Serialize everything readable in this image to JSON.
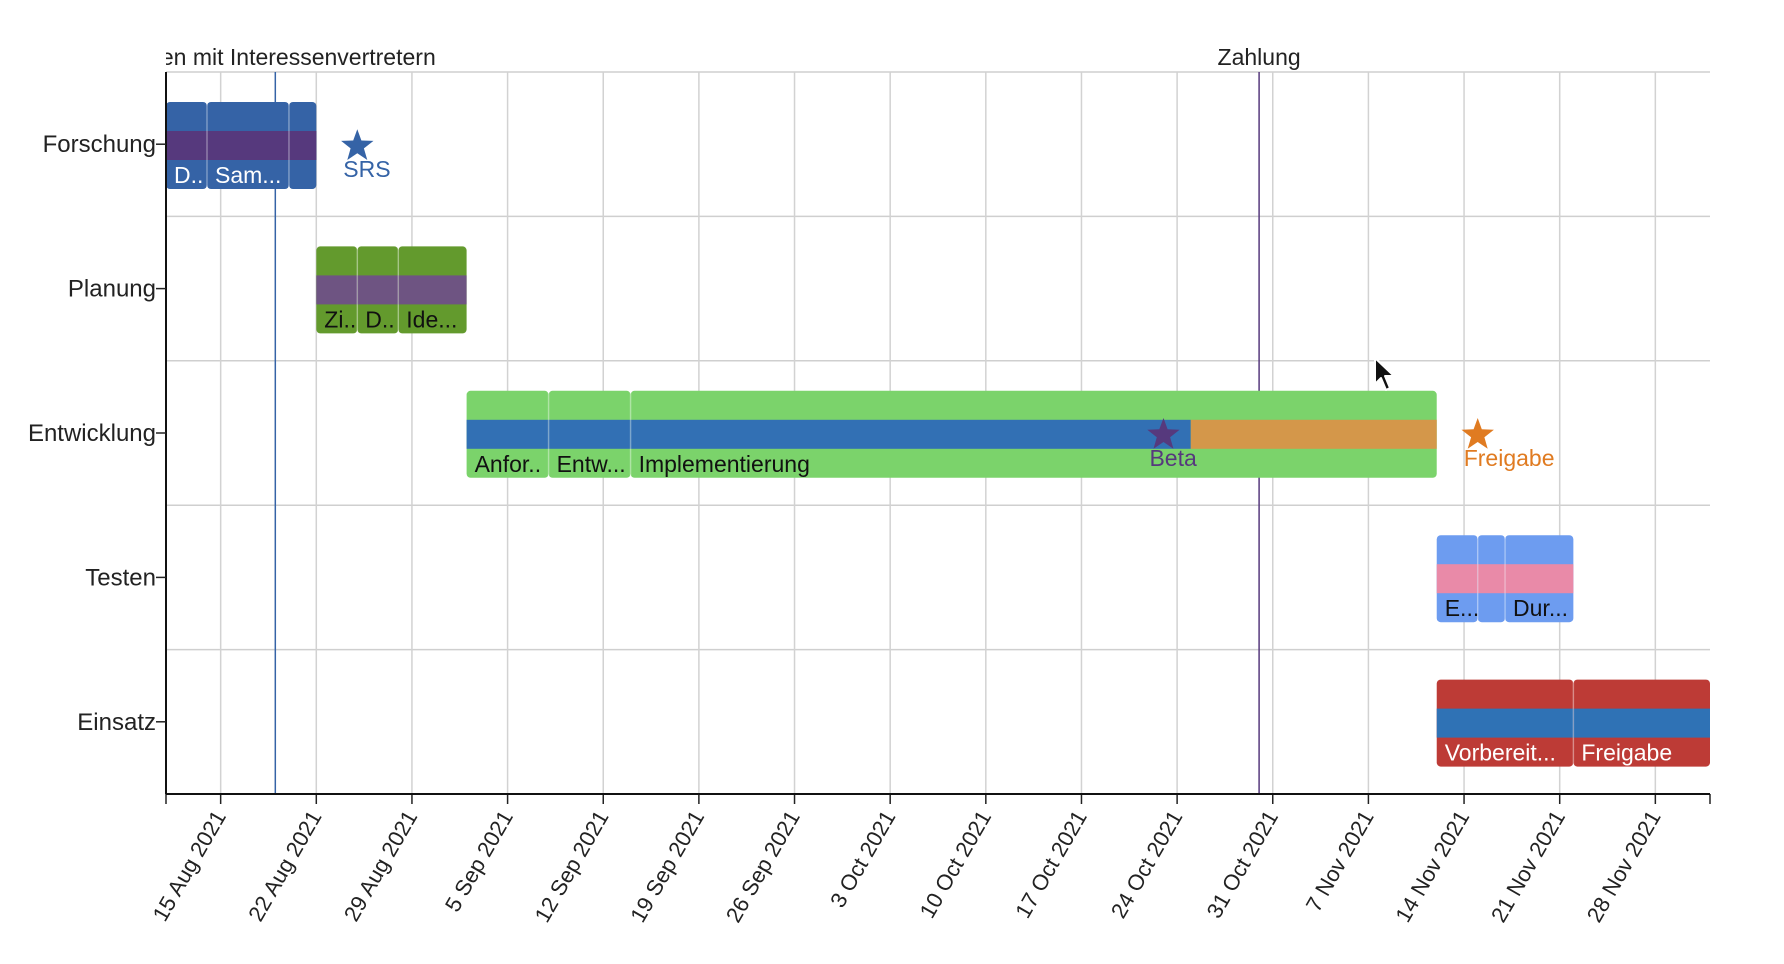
{
  "chart_data": {
    "type": "gantt",
    "x_axis": {
      "start": "2021-08-11",
      "end": "2021-12-02",
      "tick_labels": [
        "15 Aug 2021",
        "22 Aug 2021",
        "29 Aug 2021",
        "5 Sep 2021",
        "12 Sep 2021",
        "19 Sep 2021",
        "26 Sep 2021",
        "3 Oct 2021",
        "10 Oct 2021",
        "17 Oct 2021",
        "24 Oct 2021",
        "31 Oct 2021",
        "7 Nov 2021",
        "14 Nov 2021",
        "21 Nov 2021",
        "28 Nov 2021"
      ],
      "tick_dates": [
        "2021-08-15",
        "2021-08-22",
        "2021-08-29",
        "2021-09-05",
        "2021-09-12",
        "2021-09-19",
        "2021-09-26",
        "2021-10-03",
        "2021-10-10",
        "2021-10-17",
        "2021-10-24",
        "2021-10-31",
        "2021-11-07",
        "2021-11-14",
        "2021-11-21",
        "2021-11-28"
      ]
    },
    "grid": true,
    "lanes": [
      {
        "name": "Forschung",
        "colors": {
          "top": "#3563a6",
          "middle": "#56397d",
          "bottom": "#3563a6",
          "label": "#ffffff"
        },
        "tasks": [
          {
            "label": "D..",
            "start": "2021-08-11",
            "end": "2021-08-14"
          },
          {
            "label": "Sam...",
            "start": "2021-08-14",
            "end": "2021-08-20"
          },
          {
            "label": "",
            "start": "2021-08-20",
            "end": "2021-08-22"
          }
        ]
      },
      {
        "name": "Planung",
        "colors": {
          "top": "#639a2d",
          "middle": "#6e5482",
          "bottom": "#639a2d",
          "label": "#111111"
        },
        "tasks": [
          {
            "label": "Zi..",
            "start": "2021-08-22",
            "end": "2021-08-25"
          },
          {
            "label": "D..",
            "start": "2021-08-25",
            "end": "2021-08-28"
          },
          {
            "label": "Ide...",
            "start": "2021-08-28",
            "end": "2021-09-02"
          }
        ]
      },
      {
        "name": "Entwicklung",
        "colors": {
          "top": "#7bd36b",
          "middle": "#3270b4",
          "bottom": "#7bd36b",
          "label": "#111111",
          "overrun": "#d4974a"
        },
        "progress_until": "2021-10-25",
        "tasks": [
          {
            "label": "Anfor..",
            "start": "2021-09-02",
            "end": "2021-09-08"
          },
          {
            "label": "Entw...",
            "start": "2021-09-08",
            "end": "2021-09-14"
          },
          {
            "label": "Implementierung",
            "start": "2021-09-14",
            "end": "2021-11-12"
          }
        ]
      },
      {
        "name": "Testen",
        "colors": {
          "top": "#6d9cf0",
          "middle": "#e98aa8",
          "bottom": "#6d9cf0",
          "label": "#111111"
        },
        "tasks": [
          {
            "label": "E...",
            "start": "2021-11-12",
            "end": "2021-11-15"
          },
          {
            "label": "",
            "start": "2021-11-15",
            "end": "2021-11-17"
          },
          {
            "label": "Dur...",
            "start": "2021-11-17",
            "end": "2021-11-22"
          }
        ]
      },
      {
        "name": "Einsatz",
        "colors": {
          "top": "#bd3b36",
          "middle": "#2f72b5",
          "bottom": "#bd3b36",
          "label": "#ffffff"
        },
        "tasks": [
          {
            "label": "Vorbereit...",
            "start": "2021-11-12",
            "end": "2021-11-22"
          },
          {
            "label": "Freigabe",
            "start": "2021-11-22",
            "end": "2021-12-02"
          }
        ]
      }
    ],
    "milestones": [
      {
        "label": "SRS",
        "date": "2021-08-25",
        "lane": "Forschung",
        "color": "#3563a6"
      },
      {
        "label": "Beta",
        "date": "2021-10-23",
        "lane": "Entwicklung",
        "color": "#56397d"
      },
      {
        "label": "Freigabe",
        "date": "2021-11-15",
        "lane": "Entwicklung",
        "color": "#e07b21"
      }
    ],
    "vertical_markers": [
      {
        "label": "Treffen mit Interessenvertretern",
        "date": "2021-08-19",
        "color": "#3563a6"
      },
      {
        "label": "Zahlung",
        "date": "2021-10-30",
        "color": "#56397d"
      }
    ]
  }
}
